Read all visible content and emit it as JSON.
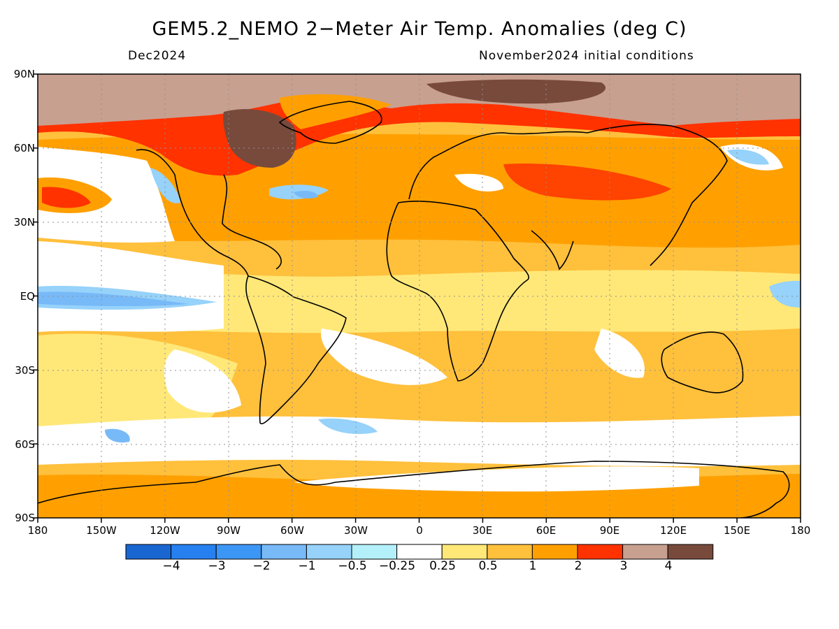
{
  "title": "GEM5.2_NEMO 2-Meter Air Temp. Anomalies (deg C)",
  "valid_month": "Dec2024",
  "init_conditions": "November2024 initial conditions",
  "lat_labels": [
    "90N",
    "60N",
    "30N",
    "EQ",
    "30S",
    "60S",
    "90S"
  ],
  "lon_labels": [
    "180",
    "150W",
    "120W",
    "90W",
    "60W",
    "30W",
    "0",
    "30E",
    "60E",
    "90E",
    "120E",
    "150E",
    "180"
  ],
  "colorbar": {
    "labels": [
      "-4",
      "-3",
      "-2",
      "-1",
      "-0.5",
      "-0.25",
      "0.25",
      "0.5",
      "1",
      "2",
      "3",
      "4"
    ],
    "colors": [
      "#1a66d1",
      "#2680f0",
      "#3c96f5",
      "#78b9f8",
      "#96d2fa",
      "#b4f0fa",
      "#ffffff",
      "#ffe878",
      "#ffc03c",
      "#ffa000",
      "#ff3200",
      "#c8a090",
      "#784a3c"
    ]
  },
  "colors": {
    "positive_dominant": "#ffa000",
    "arctic_extreme": "#784a3c",
    "coastline": "#000000"
  }
}
